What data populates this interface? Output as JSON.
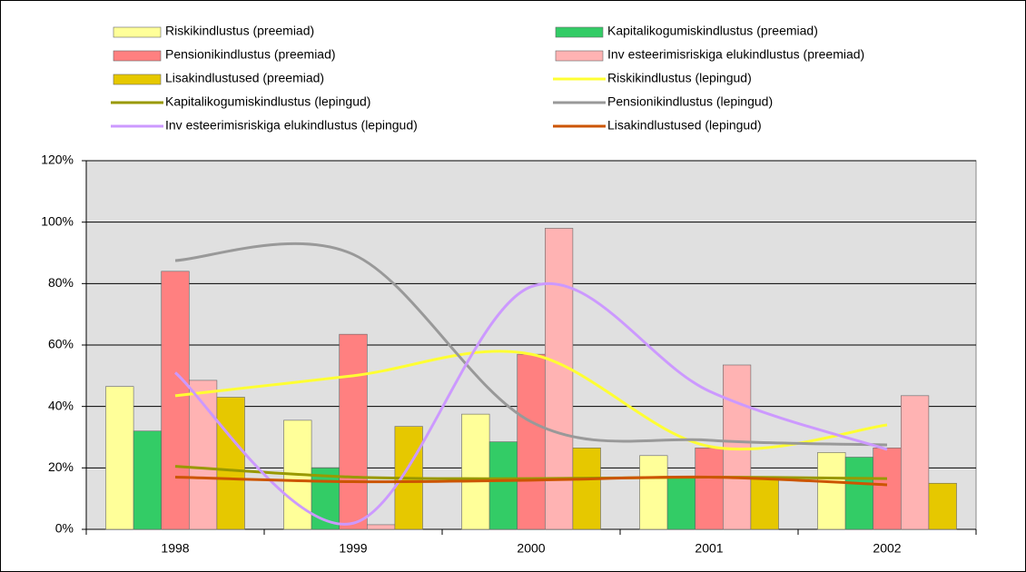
{
  "chart_data": {
    "type": "bar",
    "categories": [
      "1998",
      "1999",
      "2000",
      "2001",
      "2002"
    ],
    "ylim": [
      0,
      120
    ],
    "yticks": [
      {
        "value": 0,
        "label": "0%"
      },
      {
        "value": 20,
        "label": "20%"
      },
      {
        "value": 40,
        "label": "40%"
      },
      {
        "value": 60,
        "label": "60%"
      },
      {
        "value": 80,
        "label": "80%"
      },
      {
        "value": 100,
        "label": "100%"
      },
      {
        "value": 120,
        "label": "120%"
      }
    ],
    "grid": true,
    "series": [
      {
        "name": "Riskikindlustus (preemiad)",
        "type": "bar",
        "color": "#ffff99",
        "values": [
          46.5,
          35.5,
          37.5,
          24,
          25
        ]
      },
      {
        "name": "Kapitalikogumiskindlustus (preemiad)",
        "type": "bar",
        "color": "#33cc66",
        "values": [
          32,
          20,
          28.5,
          17,
          23.5
        ]
      },
      {
        "name": "Pensionikindlustus (preemiad)",
        "type": "bar",
        "color": "#ff8080",
        "values": [
          84,
          63.5,
          57,
          26.5,
          26.5
        ]
      },
      {
        "name": "Inv esteerimisriskiga elukindlustus (preemiad)",
        "type": "bar",
        "color": "#ffb3b3",
        "values": [
          48.5,
          1.5,
          98,
          53.5,
          43.5
        ]
      },
      {
        "name": "Lisakindlustused (preemiad)",
        "type": "bar",
        "color": "#e6c800",
        "values": [
          43,
          33.5,
          26.5,
          17,
          15
        ]
      },
      {
        "name": "Riskikindlustus (lepingud)",
        "type": "line",
        "color": "#ffff33",
        "values": [
          43.5,
          50,
          57,
          27,
          34
        ]
      },
      {
        "name": "Kapitalikogumiskindlustus (lepingud)",
        "type": "line",
        "color": "#999900",
        "values": [
          20.5,
          17,
          16.5,
          17,
          16.5
        ]
      },
      {
        "name": "Pensionikindlustus (lepingud)",
        "type": "line",
        "color": "#999999",
        "values": [
          87.5,
          89.5,
          35,
          29,
          27.5
        ]
      },
      {
        "name": "Inv esteerimisriskiga elukindlustus (lepingud)",
        "type": "line",
        "color": "#cc99ff",
        "values": [
          51,
          2,
          79,
          45,
          26
        ]
      },
      {
        "name": "Lisakindlustused (lepingud)",
        "type": "line",
        "color": "#cc5500",
        "values": [
          17,
          15.5,
          16,
          17,
          14.5
        ]
      }
    ]
  }
}
